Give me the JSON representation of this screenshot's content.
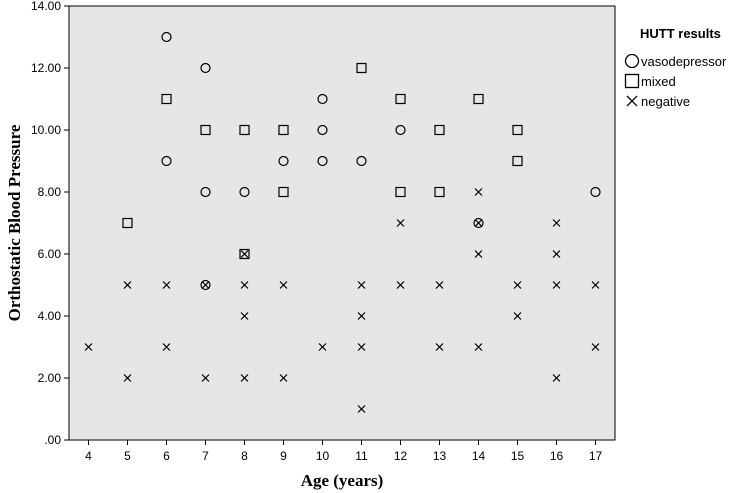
{
  "chart_data": {
    "type": "scatter",
    "xlabel": "Age (years)",
    "ylabel": "Orthostatic Blood Pressure",
    "xlim": [
      3.5,
      17.5
    ],
    "ylim": [
      0,
      14
    ],
    "x_ticks": [
      4,
      5,
      6,
      7,
      8,
      9,
      10,
      11,
      12,
      13,
      14,
      15,
      16,
      17
    ],
    "y_ticks": [
      ".00",
      "2.00",
      "4.00",
      "6.00",
      "8.00",
      "10.00",
      "12.00",
      "14.00"
    ],
    "grid": false,
    "legend_position": "top-right",
    "legend_title": "HUTT results",
    "series": [
      {
        "name": "vasodepressor",
        "marker": "circle",
        "points": [
          [
            6,
            13
          ],
          [
            6,
            9
          ],
          [
            7,
            12
          ],
          [
            7,
            8
          ],
          [
            7,
            5
          ],
          [
            8,
            8
          ],
          [
            9,
            9
          ],
          [
            10,
            11
          ],
          [
            10,
            10
          ],
          [
            10,
            9
          ],
          [
            11,
            9
          ],
          [
            12,
            10
          ],
          [
            14,
            7
          ],
          [
            17,
            8
          ]
        ]
      },
      {
        "name": "mixed",
        "marker": "square",
        "points": [
          [
            5,
            7
          ],
          [
            6,
            11
          ],
          [
            7,
            10
          ],
          [
            8,
            10
          ],
          [
            8,
            6
          ],
          [
            9,
            10
          ],
          [
            9,
            8
          ],
          [
            11,
            12
          ],
          [
            12,
            11
          ],
          [
            12,
            8
          ],
          [
            13,
            10
          ],
          [
            13,
            8
          ],
          [
            14,
            11
          ],
          [
            15,
            10
          ],
          [
            15,
            9
          ]
        ]
      },
      {
        "name": "negative",
        "marker": "x",
        "points": [
          [
            4,
            3
          ],
          [
            5,
            5
          ],
          [
            5,
            2
          ],
          [
            6,
            5
          ],
          [
            6,
            3
          ],
          [
            7,
            5
          ],
          [
            7,
            2
          ],
          [
            8,
            6
          ],
          [
            8,
            5
          ],
          [
            8,
            4
          ],
          [
            8,
            2
          ],
          [
            9,
            5
          ],
          [
            9,
            2
          ],
          [
            10,
            3
          ],
          [
            11,
            5
          ],
          [
            11,
            4
          ],
          [
            11,
            3
          ],
          [
            11,
            1
          ],
          [
            12,
            7
          ],
          [
            12,
            5
          ],
          [
            13,
            5
          ],
          [
            13,
            3
          ],
          [
            14,
            8
          ],
          [
            14,
            7
          ],
          [
            14,
            6
          ],
          [
            14,
            3
          ],
          [
            15,
            5
          ],
          [
            15,
            4
          ],
          [
            16,
            7
          ],
          [
            16,
            6
          ],
          [
            16,
            5
          ],
          [
            16,
            2
          ],
          [
            17,
            5
          ],
          [
            17,
            3
          ]
        ]
      }
    ]
  }
}
